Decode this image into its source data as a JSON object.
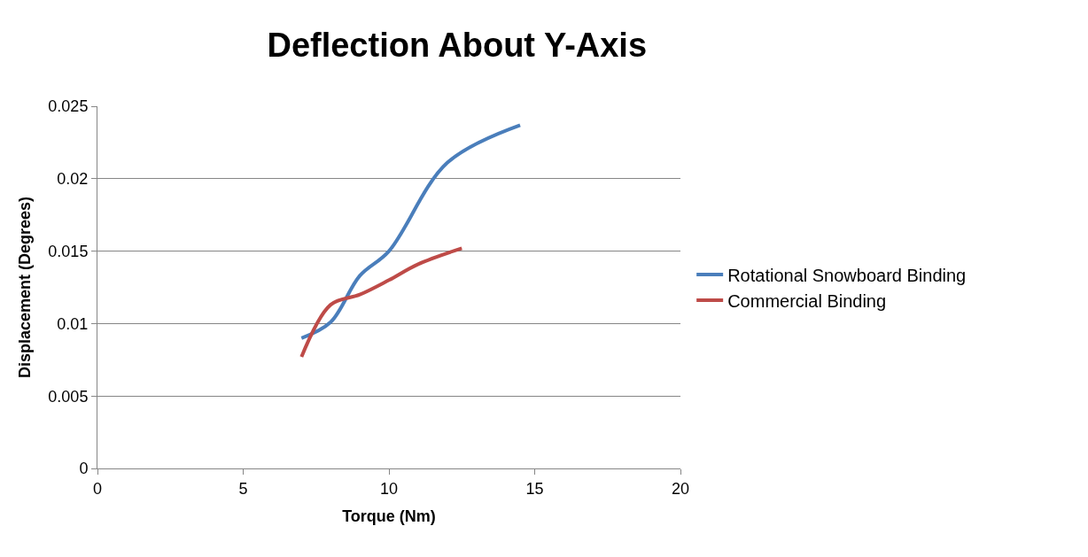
{
  "chart_data": {
    "type": "line",
    "title": "Deflection About Y-Axis",
    "xlabel": "Torque (Nm)",
    "ylabel": "Displacement (Degrees)",
    "series": [
      {
        "name": "Rotational Snowboard Binding",
        "color": "#4a7ebb",
        "x": [
          7,
          8,
          9,
          10,
          12,
          14.5
        ],
        "values": [
          0.009,
          0.0101,
          0.0133,
          0.015,
          0.0211,
          0.0237
        ]
      },
      {
        "name": "Commercial Binding",
        "color": "#be4b48",
        "x": [
          7,
          8,
          9,
          10,
          11,
          12.5
        ],
        "values": [
          0.0077,
          0.0113,
          0.012,
          0.013,
          0.0141,
          0.0152
        ]
      }
    ],
    "xlim": [
      0,
      20
    ],
    "xticks": [
      0,
      5,
      10,
      15,
      20
    ],
    "ylim": [
      0,
      0.025
    ],
    "yticks": [
      0,
      0.005,
      0.01,
      0.015,
      0.02,
      0.025
    ],
    "grid": "y",
    "legend": "right",
    "marker": "none",
    "line_style": "solid"
  }
}
